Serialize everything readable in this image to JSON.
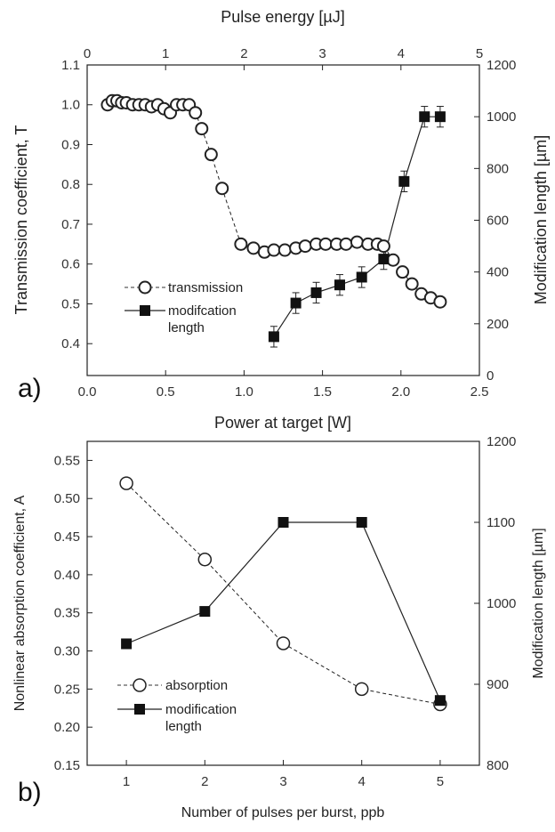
{
  "chart_data": [
    {
      "type": "scatter",
      "panel_label": "a)",
      "xlabel": "Power at target [W]",
      "x2label": "Pulse energy [µJ]",
      "ylabel": "Transmission coefficient, T",
      "y2label": "Modification length [µm]",
      "xlim": [
        0.0,
        2.5
      ],
      "x2lim": [
        0,
        5
      ],
      "ylim": [
        0.32,
        1.1
      ],
      "y2lim": [
        0,
        1200
      ],
      "xticks": [
        "0.0",
        "0.5",
        "1.0",
        "1.5",
        "2.0",
        "2.5"
      ],
      "x2ticks": [
        "0",
        "1",
        "2",
        "3",
        "4",
        "5"
      ],
      "yticks": [
        "0.4",
        "0.5",
        "0.6",
        "0.7",
        "0.8",
        "0.9",
        "1.0",
        "1.1"
      ],
      "y2ticks": [
        "0",
        "200",
        "400",
        "600",
        "800",
        "1000",
        "1200"
      ],
      "legend": {
        "position": "bottom-left",
        "entries": [
          "transmission",
          "modifcation",
          "length"
        ]
      },
      "series": [
        {
          "name": "transmission",
          "marker": "open-circle",
          "line": "dashed",
          "axis": "left",
          "x": [
            0.13,
            0.16,
            0.19,
            0.22,
            0.25,
            0.29,
            0.33,
            0.37,
            0.41,
            0.45,
            0.49,
            0.53,
            0.57,
            0.61,
            0.65,
            0.69,
            0.73,
            0.79,
            0.86,
            0.98,
            1.06,
            1.13,
            1.19,
            1.26,
            1.33,
            1.39,
            1.46,
            1.52,
            1.59,
            1.65,
            1.72,
            1.79,
            1.85,
            1.89,
            1.95,
            2.01,
            2.07,
            2.13,
            2.19,
            2.25
          ],
          "y": [
            1.0,
            1.01,
            1.01,
            1.005,
            1.005,
            1.0,
            1.0,
            1.0,
            0.995,
            1.0,
            0.99,
            0.98,
            1.0,
            1.0,
            1.0,
            0.98,
            0.94,
            0.875,
            0.79,
            0.65,
            0.64,
            0.63,
            0.635,
            0.635,
            0.64,
            0.645,
            0.65,
            0.65,
            0.65,
            0.65,
            0.655,
            0.65,
            0.65,
            0.645,
            0.61,
            0.58,
            0.55,
            0.525,
            0.515,
            0.505
          ]
        },
        {
          "name": "modifcation length",
          "marker": "filled-square",
          "line": "solid",
          "axis": "right",
          "error_bars": true,
          "x": [
            1.19,
            1.33,
            1.46,
            1.61,
            1.75,
            1.89,
            2.02,
            2.15,
            2.25
          ],
          "y": [
            150,
            280,
            320,
            350,
            380,
            450,
            750,
            1000,
            1000
          ],
          "yerr": [
            40,
            40,
            40,
            40,
            40,
            40,
            40,
            40,
            40
          ]
        }
      ]
    },
    {
      "type": "scatter",
      "panel_label": "b)",
      "xlabel": "Number of pulses per burst, ppb",
      "ylabel": "Nonlinear absorption coefficient, A",
      "y2label": "Modification length [µm]",
      "xlim": [
        0.5,
        5.5
      ],
      "ylim": [
        0.15,
        0.575
      ],
      "y2lim": [
        800,
        1200
      ],
      "xticks": [
        "1",
        "2",
        "3",
        "4",
        "5"
      ],
      "yticks": [
        "0.15",
        "0.20",
        "0.25",
        "0.30",
        "0.35",
        "0.40",
        "0.45",
        "0.50",
        "0.55"
      ],
      "y2ticks": [
        "800",
        "900",
        "1000",
        "1100",
        "1200"
      ],
      "legend": {
        "position": "bottom-left",
        "entries": [
          "absorption",
          "modification",
          "length"
        ]
      },
      "series": [
        {
          "name": "absorption",
          "marker": "open-circle",
          "line": "dashed",
          "axis": "left",
          "x": [
            1,
            2,
            3,
            4,
            5
          ],
          "y": [
            0.52,
            0.42,
            0.31,
            0.25,
            0.23
          ]
        },
        {
          "name": "modification length",
          "marker": "filled-square",
          "line": "solid",
          "axis": "right",
          "x": [
            1,
            2,
            3,
            4,
            5
          ],
          "y": [
            950,
            990,
            1100,
            1100,
            880
          ]
        }
      ]
    }
  ]
}
